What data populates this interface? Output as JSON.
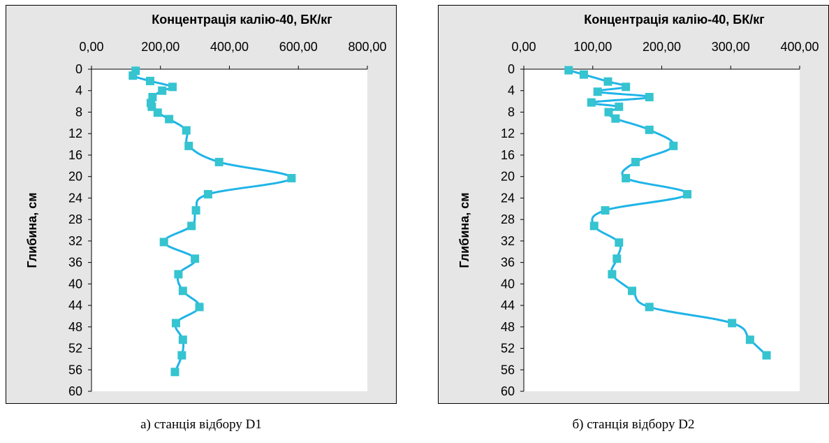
{
  "chart_data": [
    {
      "type": "line",
      "title": "Концентрація калію-40, БК/кг",
      "xlabel": "Концентрація калію-40, БК/кг",
      "ylabel": "Глибина, см",
      "xlim": [
        0,
        800
      ],
      "ylim": [
        0,
        60
      ],
      "x_ticks": [
        "0,00",
        "200,00",
        "400,00",
        "600,00",
        "800,00"
      ],
      "y_ticks": [
        "0",
        "4",
        "8",
        "12",
        "16",
        "20",
        "24",
        "28",
        "32",
        "36",
        "40",
        "44",
        "48",
        "52",
        "56",
        "60"
      ],
      "x_axis_position": "top",
      "y_axis_inverted": true,
      "grid": false,
      "series": [
        {
          "color": "#1fb4e8",
          "marker_color": "#35c4d0",
          "points": [
            {
              "x": 128,
              "y": 0.3
            },
            {
              "x": 120,
              "y": 1.2
            },
            {
              "x": 170,
              "y": 2.2
            },
            {
              "x": 235,
              "y": 3.3
            },
            {
              "x": 205,
              "y": 4.0
            },
            {
              "x": 177,
              "y": 5.2
            },
            {
              "x": 172,
              "y": 6.3
            },
            {
              "x": 175,
              "y": 7.0
            },
            {
              "x": 192,
              "y": 8.1
            },
            {
              "x": 225,
              "y": 9.3
            },
            {
              "x": 275,
              "y": 11.4
            },
            {
              "x": 282,
              "y": 14.3
            },
            {
              "x": 370,
              "y": 17.3
            },
            {
              "x": 580,
              "y": 20.3
            },
            {
              "x": 338,
              "y": 23.3
            },
            {
              "x": 303,
              "y": 26.3
            },
            {
              "x": 290,
              "y": 29.2
            },
            {
              "x": 210,
              "y": 32.2
            },
            {
              "x": 300,
              "y": 35.3
            },
            {
              "x": 252,
              "y": 38.2
            },
            {
              "x": 265,
              "y": 41.3
            },
            {
              "x": 313,
              "y": 44.3
            },
            {
              "x": 245,
              "y": 47.3
            },
            {
              "x": 265,
              "y": 50.4
            },
            {
              "x": 262,
              "y": 53.3
            },
            {
              "x": 242,
              "y": 56.4
            }
          ]
        }
      ],
      "caption": "а) станція відбору D1"
    },
    {
      "type": "line",
      "title": "Концентрація калію-40, БК/кг",
      "xlabel": "Концентрація калію-40, БК/кг",
      "ylabel": "Глибина, см",
      "xlim": [
        0,
        400
      ],
      "ylim": [
        0,
        60
      ],
      "x_ticks": [
        "0,00",
        "100,00",
        "200,00",
        "300,00",
        "400,00"
      ],
      "y_ticks": [
        "0",
        "4",
        "8",
        "12",
        "16",
        "20",
        "24",
        "28",
        "32",
        "36",
        "40",
        "44",
        "48",
        "52",
        "56",
        "60"
      ],
      "x_axis_position": "top",
      "y_axis_inverted": true,
      "grid": false,
      "series": [
        {
          "color": "#1fb4e8",
          "marker_color": "#35c4d0",
          "points": [
            {
              "x": 65,
              "y": 0.2
            },
            {
              "x": 87,
              "y": 1.0
            },
            {
              "x": 122,
              "y": 2.3
            },
            {
              "x": 148,
              "y": 3.3
            },
            {
              "x": 107,
              "y": 4.2
            },
            {
              "x": 182,
              "y": 5.2
            },
            {
              "x": 98,
              "y": 6.2
            },
            {
              "x": 138,
              "y": 7.0
            },
            {
              "x": 123,
              "y": 8.0
            },
            {
              "x": 133,
              "y": 9.2
            },
            {
              "x": 182,
              "y": 11.3
            },
            {
              "x": 217,
              "y": 14.3
            },
            {
              "x": 162,
              "y": 17.3
            },
            {
              "x": 148,
              "y": 20.3
            },
            {
              "x": 237,
              "y": 23.3
            },
            {
              "x": 118,
              "y": 26.3
            },
            {
              "x": 102,
              "y": 29.2
            },
            {
              "x": 138,
              "y": 32.3
            },
            {
              "x": 135,
              "y": 35.3
            },
            {
              "x": 128,
              "y": 38.2
            },
            {
              "x": 157,
              "y": 41.3
            },
            {
              "x": 182,
              "y": 44.3
            },
            {
              "x": 302,
              "y": 47.3
            },
            {
              "x": 328,
              "y": 50.4
            },
            {
              "x": 352,
              "y": 53.3
            }
          ]
        }
      ],
      "caption": "б) станція відбору  D2"
    }
  ],
  "colors": {
    "plot_bg": "#ffffff",
    "chart_bg": "#e6e6e6",
    "axis": "#000000"
  }
}
